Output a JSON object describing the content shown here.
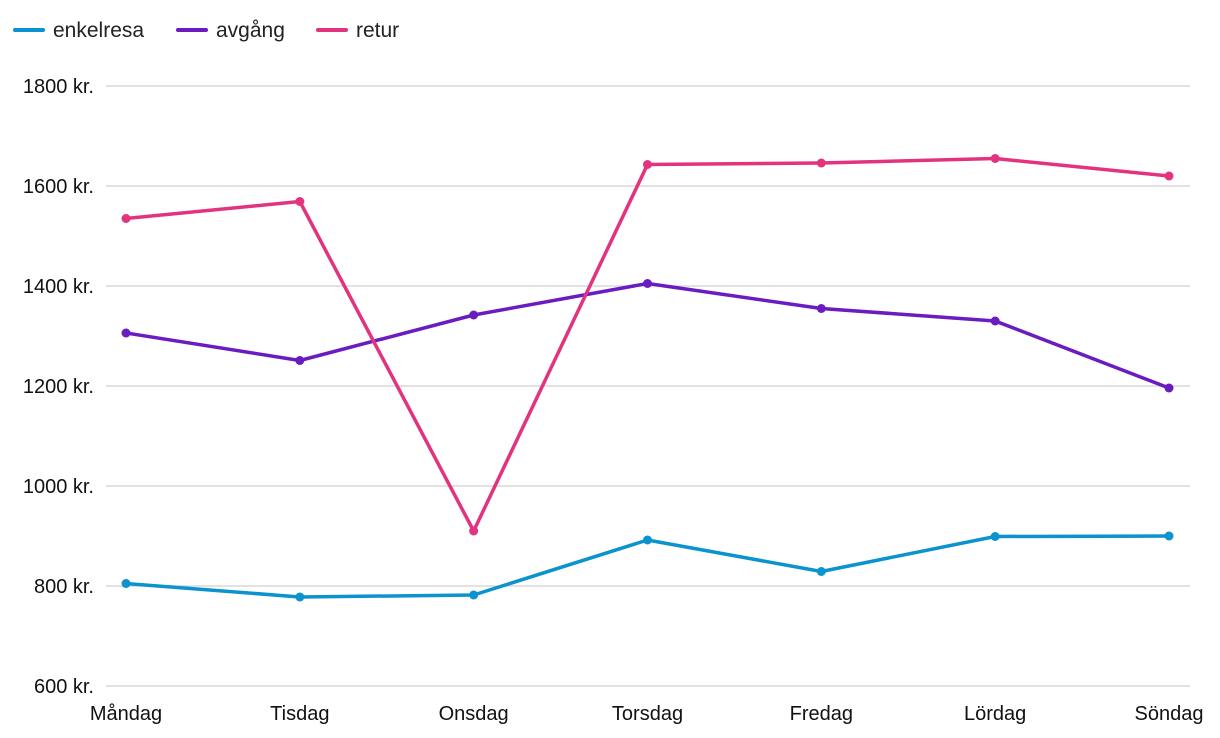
{
  "chart_data": {
    "type": "line",
    "title": "",
    "xlabel": "",
    "ylabel": "",
    "categories": [
      "Måndag",
      "Tisdag",
      "Onsdag",
      "Torsdag",
      "Fredag",
      "Lördag",
      "Söndag"
    ],
    "ylim": [
      600,
      1800
    ],
    "yticks": [
      {
        "value": 600,
        "label": "600 kr."
      },
      {
        "value": 800,
        "label": "800 kr."
      },
      {
        "value": 1000,
        "label": "1000 kr."
      },
      {
        "value": 1200,
        "label": "1200 kr."
      },
      {
        "value": 1400,
        "label": "1400 kr."
      },
      {
        "value": 1600,
        "label": "1600 kr."
      },
      {
        "value": 1800,
        "label": "1800 kr."
      }
    ],
    "grid": true,
    "legend_position": "top-left",
    "series": [
      {
        "name": "enkelresa",
        "color": "#0a93cf",
        "values": [
          805,
          778,
          782,
          892,
          829,
          899,
          900
        ]
      },
      {
        "name": "avgång",
        "color": "#6a1cc0",
        "values": [
          1306,
          1251,
          1342,
          1405,
          1355,
          1330,
          1196
        ]
      },
      {
        "name": "retur",
        "color": "#e2337f",
        "values": [
          1535,
          1569,
          910,
          1643,
          1646,
          1655,
          1620
        ]
      }
    ]
  }
}
